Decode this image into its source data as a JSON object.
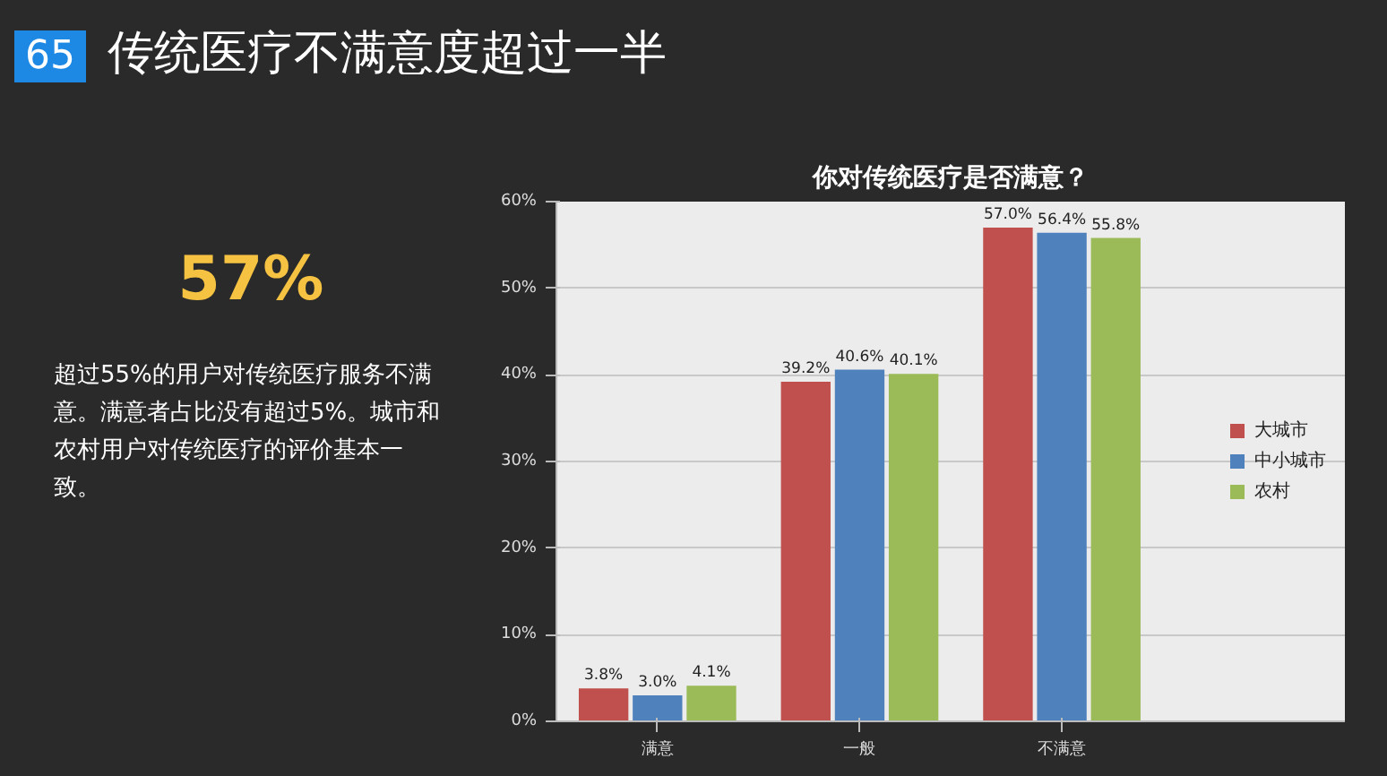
{
  "chart_data": {
    "type": "bar",
    "title": "你对传统医疗是否满意？",
    "subtitle": "传统医疗不满意度超过一半",
    "annotations": [
      "65",
      "57%",
      "超过55%的用户对传统医疗服务不满意。满意者占比没有超过5%。城市和农村用户对传统医疗的评价基本一致。"
    ],
    "categories": [
      "满意",
      "一般",
      "不满意"
    ],
    "series": [
      {
        "name": "大城市",
        "color": "#c0504d",
        "values": [
          3.8,
          39.2,
          57.0
        ],
        "value_labels": [
          "3.8%",
          "39.2%",
          "57.0%"
        ]
      },
      {
        "name": "中小城市",
        "color": "#4f81bd",
        "values": [
          3.0,
          40.6,
          56.4
        ],
        "value_labels": [
          "3.0%",
          "40.6%",
          "56.4%"
        ]
      },
      {
        "name": "农村",
        "color": "#9bbb59",
        "values": [
          4.1,
          40.1,
          55.8
        ],
        "value_labels": [
          "4.1%",
          "40.1%",
          "55.8%"
        ]
      }
    ],
    "ylim": [
      0,
      60
    ],
    "yticks": [
      {
        "value": 0,
        "label": "0%"
      },
      {
        "value": 10,
        "label": "10%"
      },
      {
        "value": 20,
        "label": "20%"
      },
      {
        "value": 30,
        "label": "30%"
      },
      {
        "value": 40,
        "label": "40%"
      },
      {
        "value": 50,
        "label": "50%"
      },
      {
        "value": 60,
        "label": "60%"
      }
    ],
    "grid": "y",
    "legend": "right"
  }
}
